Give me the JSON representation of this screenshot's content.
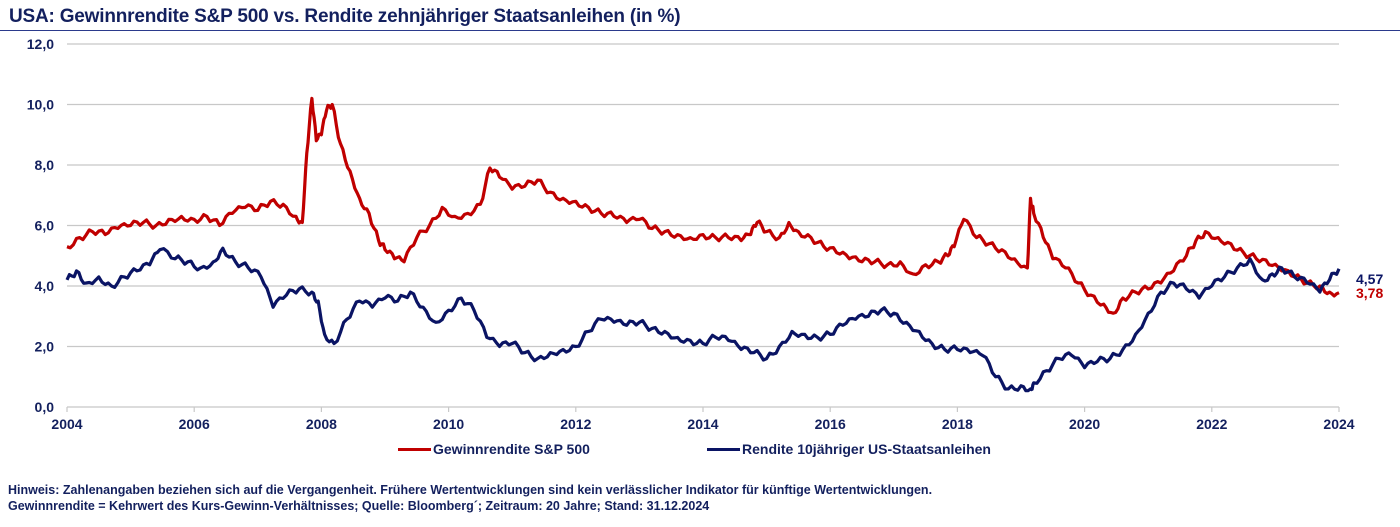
{
  "chart_data": {
    "type": "line",
    "title": "USA: Gewinnrendite S&P 500 vs. Rendite zehnjähriger Staatsanleihen (in %)",
    "xlabel": "",
    "ylabel": "",
    "xlim": [
      2004,
      2024
    ],
    "ylim": [
      0,
      12
    ],
    "grid": true,
    "legend_position": "bottom",
    "y_ticks": [
      "0,0",
      "2,0",
      "4,0",
      "6,0",
      "8,0",
      "10,0",
      "12,0"
    ],
    "y_tick_values": [
      0,
      2,
      4,
      6,
      8,
      10,
      12
    ],
    "x_ticks": [
      "2004",
      "2006",
      "2008",
      "2010",
      "2012",
      "2014",
      "2016",
      "2018",
      "2020",
      "2022",
      "2024"
    ],
    "x_tick_values": [
      2004,
      2006,
      2008,
      2010,
      2012,
      2014,
      2016,
      2018,
      2020,
      2022,
      2024
    ],
    "series": [
      {
        "name": "Gewinnrendite S&P 500",
        "color": "#c00000",
        "end_label": "3,78",
        "x": [
          2004.0,
          2004.2,
          2004.4,
          2004.6,
          2004.8,
          2005.0,
          2005.2,
          2005.4,
          2005.6,
          2005.8,
          2006.0,
          2006.2,
          2006.4,
          2006.6,
          2006.8,
          2007.0,
          2007.2,
          2007.4,
          2007.6,
          2007.7,
          2007.77,
          2007.85,
          2007.92,
          2008.0,
          2008.08,
          2008.17,
          2008.3,
          2008.45,
          2008.6,
          2008.75,
          2008.9,
          2009.0,
          2009.15,
          2009.3,
          2009.5,
          2009.7,
          2009.9,
          2010.1,
          2010.3,
          2010.5,
          2010.65,
          2010.8,
          2011.0,
          2011.2,
          2011.4,
          2011.6,
          2011.8,
          2012.0,
          2012.2,
          2012.4,
          2012.6,
          2012.8,
          2013.0,
          2013.2,
          2013.4,
          2013.6,
          2013.8,
          2014.0,
          2014.2,
          2014.4,
          2014.6,
          2014.75,
          2014.85,
          2015.0,
          2015.2,
          2015.35,
          2015.5,
          2015.7,
          2015.9,
          2016.1,
          2016.3,
          2016.5,
          2016.7,
          2016.9,
          2017.1,
          2017.3,
          2017.5,
          2017.7,
          2017.85,
          2017.95,
          2018.1,
          2018.3,
          2018.5,
          2018.7,
          2018.9,
          2019.1,
          2019.15,
          2019.2,
          2019.35,
          2019.5,
          2019.7,
          2019.9,
          2020.1,
          2020.3,
          2020.45,
          2020.6,
          2020.8,
          2021.0,
          2021.2,
          2021.4,
          2021.6,
          2021.75,
          2021.9,
          2022.1,
          2022.3,
          2022.5,
          2022.7,
          2022.9,
          2023.1,
          2023.3,
          2023.5,
          2023.7,
          2023.85,
          2024.0
        ],
        "values": [
          5.3,
          5.6,
          5.8,
          5.7,
          5.9,
          6.0,
          6.1,
          6.0,
          6.2,
          6.3,
          6.2,
          6.3,
          6.0,
          6.4,
          6.6,
          6.5,
          6.8,
          6.7,
          6.3,
          6.1,
          8.4,
          10.2,
          8.8,
          9.0,
          9.8,
          10.0,
          8.7,
          7.8,
          6.9,
          6.4,
          5.5,
          5.2,
          4.9,
          4.8,
          5.6,
          6.0,
          6.6,
          6.3,
          6.4,
          6.7,
          7.9,
          7.6,
          7.2,
          7.3,
          7.5,
          7.1,
          6.9,
          6.8,
          6.6,
          6.4,
          6.3,
          6.1,
          6.2,
          5.9,
          5.8,
          5.7,
          5.6,
          5.7,
          5.6,
          5.6,
          5.5,
          5.7,
          6.1,
          5.8,
          5.6,
          6.1,
          5.8,
          5.6,
          5.3,
          5.1,
          4.9,
          4.8,
          4.8,
          4.7,
          4.8,
          4.4,
          4.7,
          4.8,
          5.0,
          5.3,
          6.2,
          5.6,
          5.4,
          5.2,
          4.9,
          4.6,
          6.9,
          6.4,
          5.6,
          4.9,
          4.6,
          4.1,
          3.7,
          3.4,
          3.1,
          3.6,
          3.8,
          3.9,
          4.1,
          4.5,
          5.0,
          5.5,
          5.8,
          5.6,
          5.4,
          5.1,
          4.9,
          4.7,
          4.5,
          4.3,
          4.1,
          4.0,
          3.8,
          3.78
        ]
      },
      {
        "name": "Rendite 10jähriger US-Staatsanleihen",
        "color": "#0a1464",
        "end_label": "4,57",
        "x": [
          2004.0,
          2004.15,
          2004.3,
          2004.5,
          2004.7,
          2004.9,
          2005.1,
          2005.3,
          2005.46,
          2005.7,
          2005.9,
          2006.1,
          2006.3,
          2006.45,
          2006.65,
          2006.85,
          2007.05,
          2007.24,
          2007.45,
          2007.65,
          2007.85,
          2007.95,
          2008.05,
          2008.2,
          2008.4,
          2008.6,
          2008.8,
          2009.0,
          2009.2,
          2009.4,
          2009.6,
          2009.8,
          2010.0,
          2010.2,
          2010.4,
          2010.6,
          2010.8,
          2011.0,
          2011.2,
          2011.4,
          2011.6,
          2011.8,
          2012.0,
          2012.2,
          2012.4,
          2012.6,
          2012.8,
          2013.0,
          2013.2,
          2013.4,
          2013.6,
          2013.8,
          2014.0,
          2014.2,
          2014.4,
          2014.6,
          2014.8,
          2015.0,
          2015.2,
          2015.4,
          2015.6,
          2015.8,
          2016.0,
          2016.2,
          2016.4,
          2016.6,
          2016.8,
          2017.0,
          2017.2,
          2017.4,
          2017.6,
          2017.8,
          2018.0,
          2018.2,
          2018.4,
          2018.6,
          2018.8,
          2019.0,
          2019.15,
          2019.2,
          2019.4,
          2019.6,
          2019.8,
          2020.0,
          2020.2,
          2020.4,
          2020.6,
          2020.8,
          2021.0,
          2021.2,
          2021.4,
          2021.6,
          2021.8,
          2022.0,
          2022.2,
          2022.4,
          2022.6,
          2022.8,
          2022.95,
          2023.1,
          2023.3,
          2023.5,
          2023.7,
          2023.85,
          2024.0
        ],
        "values": [
          4.2,
          4.5,
          4.1,
          4.3,
          4.0,
          4.3,
          4.5,
          4.7,
          5.2,
          4.9,
          4.8,
          4.6,
          4.8,
          5.25,
          4.8,
          4.6,
          4.3,
          3.3,
          3.7,
          3.9,
          3.8,
          3.5,
          2.4,
          2.1,
          2.9,
          3.5,
          3.3,
          3.6,
          3.5,
          3.8,
          3.3,
          2.8,
          3.2,
          3.6,
          3.2,
          2.3,
          2.0,
          2.1,
          1.8,
          1.6,
          1.8,
          1.9,
          2.0,
          2.5,
          2.9,
          2.8,
          2.7,
          2.8,
          2.6,
          2.5,
          2.3,
          2.2,
          2.1,
          2.3,
          2.2,
          1.9,
          1.8,
          1.6,
          2.0,
          2.5,
          2.4,
          2.3,
          2.4,
          2.7,
          2.9,
          3.0,
          3.2,
          3.1,
          2.8,
          2.5,
          2.1,
          1.9,
          1.9,
          1.8,
          1.7,
          1.0,
          0.6,
          0.7,
          0.6,
          0.8,
          1.2,
          1.6,
          1.7,
          1.3,
          1.5,
          1.6,
          1.9,
          2.4,
          3.1,
          3.8,
          4.1,
          3.9,
          3.6,
          4.0,
          4.3,
          4.6,
          4.9,
          4.2,
          4.4,
          4.6,
          4.3,
          4.1,
          3.8,
          4.2,
          4.57
        ]
      }
    ]
  },
  "notes": {
    "line1": "Hinweis: Zahlenangaben beziehen sich auf die Vergangenheit. Frühere Wertentwicklungen sind kein verlässlicher Indikator für künftige Wertentwicklungen.",
    "line2": "Gewinnrendite = Kehrwert des Kurs-Gewinn-Verhältnisses; Quelle: Bloomberg´; Zeitraum: 20 Jahre; Stand: 31.12.2024"
  }
}
